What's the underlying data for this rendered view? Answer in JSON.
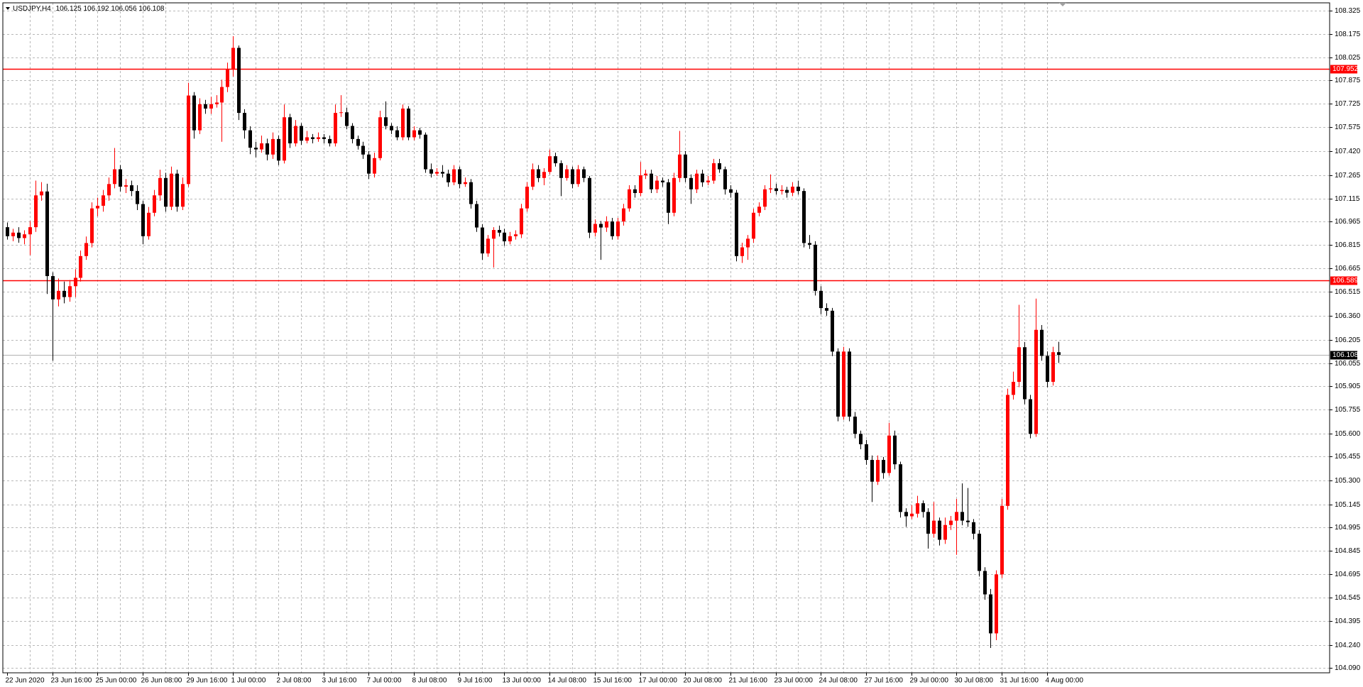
{
  "chart_data": {
    "type": "candlestick",
    "symbol": "USDJPY,H4",
    "up_color": "#ff0000",
    "down_color": "#000000",
    "grid": true,
    "price_line_color": "#b0b0b0",
    "ylim": [
      104.06,
      108.375
    ],
    "yticks": [
      108.325,
      108.175,
      108.025,
      107.875,
      107.725,
      107.575,
      {
        "value": 107.42,
        "label": "107.420"
      },
      107.265,
      107.115,
      106.965,
      106.815,
      106.665,
      106.515,
      {
        "value": 106.36,
        "label": "106.360"
      },
      106.205,
      106.055,
      105.905,
      105.755,
      {
        "value": 105.6,
        "label": "105.600"
      },
      105.455,
      {
        "value": 105.3,
        "label": "105.300"
      },
      105.145,
      104.995,
      104.845,
      104.695,
      104.545,
      104.395,
      {
        "value": 104.24,
        "label": "104.240"
      },
      {
        "value": 104.09,
        "label": "104.090"
      }
    ],
    "hlines": [
      {
        "value": 107.952,
        "color": "#ff0000"
      },
      {
        "value": 106.589,
        "color": "#ff0000"
      }
    ],
    "categories": [
      "22 Jun 2020",
      null,
      null,
      null,
      null,
      null,
      null,
      null,
      "23 Jun 16:00",
      null,
      null,
      null,
      null,
      null,
      null,
      null,
      "25 Jun 00:00",
      null,
      null,
      null,
      null,
      null,
      null,
      null,
      "26 Jun 08:00",
      null,
      null,
      null,
      null,
      null,
      null,
      null,
      "29 Jun 16:00",
      null,
      null,
      null,
      null,
      null,
      null,
      null,
      "1 Jul 00:00",
      null,
      null,
      null,
      null,
      null,
      null,
      null,
      "2 Jul 08:00",
      null,
      null,
      null,
      null,
      null,
      null,
      null,
      "3 Jul 16:00",
      null,
      null,
      null,
      null,
      null,
      null,
      null,
      "7 Jul 00:00",
      null,
      null,
      null,
      null,
      null,
      null,
      null,
      "8 Jul 08:00",
      null,
      null,
      null,
      null,
      null,
      null,
      null,
      "9 Jul 16:00",
      null,
      null,
      null,
      null,
      null,
      null,
      null,
      "13 Jul 00:00",
      null,
      null,
      null,
      null,
      null,
      null,
      null,
      "14 Jul 08:00",
      null,
      null,
      null,
      null,
      null,
      null,
      null,
      "15 Jul 16:00",
      null,
      null,
      null,
      null,
      null,
      null,
      null,
      "17 Jul 00:00",
      null,
      null,
      null,
      null,
      null,
      null,
      null,
      "20 Jul 08:00",
      null,
      null,
      null,
      null,
      null,
      null,
      null,
      "21 Jul 16:00",
      null,
      null,
      null,
      null,
      null,
      null,
      null,
      "23 Jul 00:00",
      null,
      null,
      null,
      null,
      null,
      null,
      null,
      "24 Jul 08:00",
      null,
      null,
      null,
      null,
      null,
      null,
      null,
      "27 Jul 16:00",
      null,
      null,
      null,
      null,
      null,
      null,
      null,
      "29 Jul 00:00",
      null,
      null,
      null,
      null,
      null,
      null,
      null,
      "30 Jul 08:00",
      null,
      null,
      null,
      null,
      null,
      null,
      null,
      "31 Jul 16:00",
      null,
      null,
      null,
      null,
      null,
      null,
      null,
      "4 Aug 00:00",
      null,
      null
    ],
    "ohlc": [
      [
        106.93,
        106.96,
        106.85,
        106.872
      ],
      [
        106.872,
        106.92,
        106.84,
        106.895
      ],
      [
        106.895,
        106.93,
        106.83,
        106.86
      ],
      [
        106.86,
        106.91,
        106.82,
        106.884
      ],
      [
        106.884,
        106.97,
        106.75,
        106.93
      ],
      [
        106.93,
        107.23,
        106.9,
        107.135
      ],
      [
        107.135,
        107.22,
        107.1,
        107.16
      ],
      [
        107.16,
        107.21,
        106.5,
        106.615
      ],
      [
        106.615,
        106.64,
        106.07,
        106.465
      ],
      [
        106.465,
        106.6,
        106.42,
        106.52
      ],
      [
        106.52,
        106.58,
        106.44,
        106.48
      ],
      [
        106.48,
        106.59,
        106.45,
        106.55
      ],
      [
        106.55,
        106.66,
        106.48,
        106.604
      ],
      [
        106.604,
        106.78,
        106.58,
        106.744
      ],
      [
        106.744,
        106.87,
        106.72,
        106.828
      ],
      [
        106.828,
        107.09,
        106.8,
        107.051
      ],
      [
        107.051,
        107.12,
        107.0,
        107.068
      ],
      [
        107.068,
        107.17,
        107.03,
        107.135
      ],
      [
        107.135,
        107.25,
        107.1,
        107.208
      ],
      [
        107.208,
        107.44,
        107.18,
        107.303
      ],
      [
        107.303,
        107.33,
        107.16,
        107.191
      ],
      [
        107.191,
        107.24,
        107.15,
        107.2
      ],
      [
        107.2,
        107.23,
        107.13,
        107.163
      ],
      [
        107.163,
        107.2,
        107.04,
        107.079
      ],
      [
        107.079,
        107.1,
        106.82,
        106.872
      ],
      [
        106.872,
        107.06,
        106.85,
        107.023
      ],
      [
        107.023,
        107.17,
        107.0,
        107.135
      ],
      [
        107.135,
        107.3,
        107.1,
        107.247
      ],
      [
        107.247,
        107.28,
        107.03,
        107.062
      ],
      [
        107.062,
        107.32,
        107.04,
        107.275
      ],
      [
        107.275,
        107.3,
        107.03,
        107.062
      ],
      [
        107.062,
        107.25,
        107.04,
        107.208
      ],
      [
        107.208,
        107.86,
        107.19,
        107.778
      ],
      [
        107.778,
        107.8,
        107.5,
        107.554
      ],
      [
        107.554,
        107.76,
        107.53,
        107.722
      ],
      [
        107.722,
        107.75,
        107.66,
        107.694
      ],
      [
        107.694,
        107.77,
        107.66,
        107.722
      ],
      [
        107.722,
        107.78,
        107.7,
        107.733
      ],
      [
        107.733,
        107.88,
        107.48,
        107.833
      ],
      [
        107.833,
        107.99,
        107.8,
        107.945
      ],
      [
        107.945,
        108.16,
        107.9,
        108.085
      ],
      [
        108.085,
        108.1,
        107.62,
        107.666
      ],
      [
        107.666,
        107.69,
        107.5,
        107.554
      ],
      [
        107.554,
        107.58,
        107.4,
        107.442
      ],
      [
        107.442,
        107.48,
        107.38,
        107.431
      ],
      [
        107.431,
        107.52,
        107.41,
        107.47
      ],
      [
        107.47,
        107.5,
        107.36,
        107.398
      ],
      [
        107.398,
        107.54,
        107.37,
        107.498
      ],
      [
        107.498,
        107.52,
        107.33,
        107.359
      ],
      [
        107.359,
        107.72,
        107.34,
        107.638
      ],
      [
        107.638,
        107.66,
        107.44,
        107.47
      ],
      [
        107.47,
        107.62,
        107.45,
        107.582
      ],
      [
        107.582,
        107.6,
        107.46,
        107.487
      ],
      [
        107.487,
        107.55,
        107.47,
        107.509
      ],
      [
        107.509,
        107.53,
        107.47,
        107.498
      ],
      [
        107.498,
        107.54,
        107.48,
        107.509
      ],
      [
        107.509,
        107.53,
        107.47,
        107.498
      ],
      [
        107.498,
        107.52,
        107.45,
        107.47
      ],
      [
        107.47,
        107.72,
        107.45,
        107.666
      ],
      [
        107.666,
        107.78,
        107.64,
        107.67
      ],
      [
        107.67,
        107.7,
        107.56,
        107.582
      ],
      [
        107.582,
        107.6,
        107.47,
        107.498
      ],
      [
        107.498,
        107.52,
        107.43,
        107.454
      ],
      [
        107.454,
        107.48,
        107.37,
        107.398
      ],
      [
        107.398,
        107.42,
        107.24,
        107.275
      ],
      [
        107.275,
        107.41,
        107.25,
        107.375
      ],
      [
        107.375,
        107.68,
        107.36,
        107.638
      ],
      [
        107.638,
        107.74,
        107.56,
        107.582
      ],
      [
        107.582,
        107.6,
        107.53,
        107.554
      ],
      [
        107.554,
        107.58,
        107.49,
        107.509
      ],
      [
        107.509,
        107.72,
        107.49,
        107.694
      ],
      [
        107.694,
        107.71,
        107.49,
        107.509
      ],
      [
        107.509,
        107.58,
        107.49,
        107.554
      ],
      [
        107.554,
        107.57,
        107.5,
        107.526
      ],
      [
        107.526,
        107.54,
        107.28,
        107.303
      ],
      [
        107.303,
        107.34,
        107.25,
        107.275
      ],
      [
        107.275,
        107.31,
        107.26,
        107.286
      ],
      [
        107.286,
        107.33,
        107.25,
        107.275
      ],
      [
        107.275,
        107.3,
        107.19,
        107.219
      ],
      [
        107.219,
        107.33,
        107.2,
        107.303
      ],
      [
        107.303,
        107.32,
        107.18,
        107.208
      ],
      [
        107.208,
        107.25,
        107.19,
        107.22
      ],
      [
        107.22,
        107.24,
        107.05,
        107.079
      ],
      [
        107.079,
        107.1,
        106.9,
        106.928
      ],
      [
        106.928,
        106.95,
        106.72,
        106.761
      ],
      [
        106.761,
        106.88,
        106.74,
        106.856
      ],
      [
        106.856,
        106.93,
        106.67,
        106.912
      ],
      [
        106.912,
        106.94,
        106.87,
        106.895
      ],
      [
        106.895,
        106.92,
        106.81,
        106.839
      ],
      [
        106.839,
        106.9,
        106.82,
        106.872
      ],
      [
        106.872,
        106.91,
        106.85,
        106.884
      ],
      [
        106.884,
        107.08,
        106.86,
        107.051
      ],
      [
        107.051,
        107.22,
        107.03,
        107.191
      ],
      [
        107.191,
        107.34,
        107.17,
        107.303
      ],
      [
        107.303,
        107.33,
        107.22,
        107.247
      ],
      [
        107.247,
        107.31,
        107.2,
        107.286
      ],
      [
        107.286,
        107.43,
        107.27,
        107.387
      ],
      [
        107.387,
        107.41,
        107.32,
        107.342
      ],
      [
        107.342,
        107.36,
        107.13,
        107.247
      ],
      [
        107.247,
        107.33,
        107.23,
        107.303
      ],
      [
        107.303,
        107.32,
        107.18,
        107.208
      ],
      [
        107.208,
        107.33,
        107.19,
        107.303
      ],
      [
        107.303,
        107.32,
        107.22,
        107.247
      ],
      [
        107.247,
        107.26,
        106.86,
        106.895
      ],
      [
        106.895,
        106.98,
        106.87,
        106.951
      ],
      [
        106.951,
        106.97,
        106.72,
        106.928
      ],
      [
        106.928,
        107.0,
        106.9,
        106.967
      ],
      [
        106.967,
        106.99,
        106.85,
        106.872
      ],
      [
        106.872,
        106.99,
        106.85,
        106.967
      ],
      [
        106.967,
        107.08,
        106.94,
        107.051
      ],
      [
        107.051,
        107.2,
        107.03,
        107.174
      ],
      [
        107.174,
        107.2,
        107.12,
        107.15
      ],
      [
        107.15,
        107.35,
        107.13,
        107.264
      ],
      [
        107.264,
        107.3,
        107.24,
        107.275
      ],
      [
        107.275,
        107.3,
        107.15,
        107.174
      ],
      [
        107.174,
        107.26,
        107.15,
        107.23
      ],
      [
        107.23,
        107.25,
        107.19,
        107.219
      ],
      [
        107.219,
        107.24,
        106.95,
        107.023
      ],
      [
        107.023,
        107.28,
        107.0,
        107.247
      ],
      [
        107.247,
        107.55,
        107.22,
        107.398
      ],
      [
        107.398,
        107.42,
        107.22,
        107.247
      ],
      [
        107.247,
        107.27,
        107.08,
        107.174
      ],
      [
        107.174,
        107.3,
        107.15,
        107.275
      ],
      [
        107.275,
        107.3,
        107.19,
        107.219
      ],
      [
        107.219,
        107.26,
        107.2,
        107.23
      ],
      [
        107.23,
        107.37,
        107.21,
        107.342
      ],
      [
        107.342,
        107.37,
        107.28,
        107.303
      ],
      [
        107.303,
        107.32,
        107.14,
        107.174
      ],
      [
        107.174,
        107.2,
        107.12,
        107.152
      ],
      [
        107.152,
        107.17,
        106.71,
        106.744
      ],
      [
        106.744,
        106.83,
        106.7,
        106.8
      ],
      [
        106.8,
        106.88,
        106.72,
        106.856
      ],
      [
        106.856,
        107.05,
        106.83,
        107.023
      ],
      [
        107.023,
        107.09,
        107.0,
        107.062
      ],
      [
        107.062,
        107.2,
        107.04,
        107.174
      ],
      [
        107.174,
        107.27,
        107.15,
        107.18
      ],
      [
        107.18,
        107.21,
        107.14,
        107.163
      ],
      [
        107.163,
        107.2,
        107.14,
        107.17
      ],
      [
        107.17,
        107.19,
        107.12,
        107.152
      ],
      [
        107.152,
        107.22,
        107.13,
        107.191
      ],
      [
        107.191,
        107.23,
        107.14,
        107.163
      ],
      [
        107.163,
        107.18,
        106.8,
        106.828
      ],
      [
        106.828,
        106.88,
        106.79,
        106.817
      ],
      [
        106.817,
        106.84,
        106.49,
        106.52
      ],
      [
        106.52,
        106.55,
        106.37,
        106.409
      ],
      [
        106.409,
        106.44,
        106.36,
        106.392
      ],
      [
        106.392,
        106.41,
        106.1,
        106.129
      ],
      [
        106.129,
        106.15,
        105.68,
        105.71
      ],
      [
        105.71,
        106.16,
        105.69,
        106.129
      ],
      [
        106.129,
        106.15,
        105.68,
        105.71
      ],
      [
        105.71,
        105.74,
        105.57,
        105.599
      ],
      [
        105.599,
        105.62,
        105.5,
        105.532
      ],
      [
        105.532,
        105.56,
        105.4,
        105.431
      ],
      [
        105.431,
        105.46,
        105.16,
        105.291
      ],
      [
        105.291,
        105.46,
        105.27,
        105.431
      ],
      [
        105.431,
        105.45,
        105.31,
        105.347
      ],
      [
        105.347,
        105.67,
        105.33,
        105.588
      ],
      [
        105.588,
        105.62,
        105.37,
        105.403
      ],
      [
        105.403,
        105.42,
        105.06,
        105.096
      ],
      [
        105.096,
        105.12,
        105.0,
        105.068
      ],
      [
        105.068,
        105.14,
        105.05,
        105.085
      ],
      [
        105.085,
        105.2,
        105.06,
        105.152
      ],
      [
        105.152,
        105.17,
        105.06,
        105.096
      ],
      [
        105.096,
        105.12,
        104.86,
        104.956
      ],
      [
        104.956,
        105.16,
        104.93,
        105.04
      ],
      [
        105.04,
        105.06,
        104.88,
        104.917
      ],
      [
        104.917,
        105.06,
        104.89,
        105.012
      ],
      [
        105.012,
        105.07,
        104.98,
        105.04
      ],
      [
        105.04,
        105.18,
        104.82,
        105.096
      ],
      [
        105.096,
        105.28,
        105.01,
        105.04
      ],
      [
        105.04,
        105.25,
        105.0,
        105.03
      ],
      [
        105.03,
        105.05,
        104.92,
        104.956
      ],
      [
        104.956,
        104.98,
        104.68,
        104.716
      ],
      [
        104.716,
        104.74,
        104.53,
        104.565
      ],
      [
        104.565,
        104.6,
        104.22,
        104.314
      ],
      [
        104.314,
        104.72,
        104.27,
        104.694
      ],
      [
        104.694,
        105.18,
        104.67,
        105.135
      ],
      [
        105.135,
        105.89,
        105.11,
        105.85
      ],
      [
        105.85,
        106.0,
        105.82,
        105.934
      ],
      [
        105.934,
        106.43,
        105.9,
        106.157
      ],
      [
        106.157,
        106.19,
        105.79,
        105.822
      ],
      [
        105.822,
        105.85,
        105.57,
        105.599
      ],
      [
        105.599,
        106.47,
        105.58,
        106.269
      ],
      [
        106.269,
        106.3,
        106.07,
        106.101
      ],
      [
        106.101,
        106.13,
        105.9,
        105.934
      ],
      [
        105.934,
        106.16,
        105.91,
        106.125
      ],
      [
        106.125,
        106.192,
        106.056,
        106.108
      ]
    ]
  }
}
